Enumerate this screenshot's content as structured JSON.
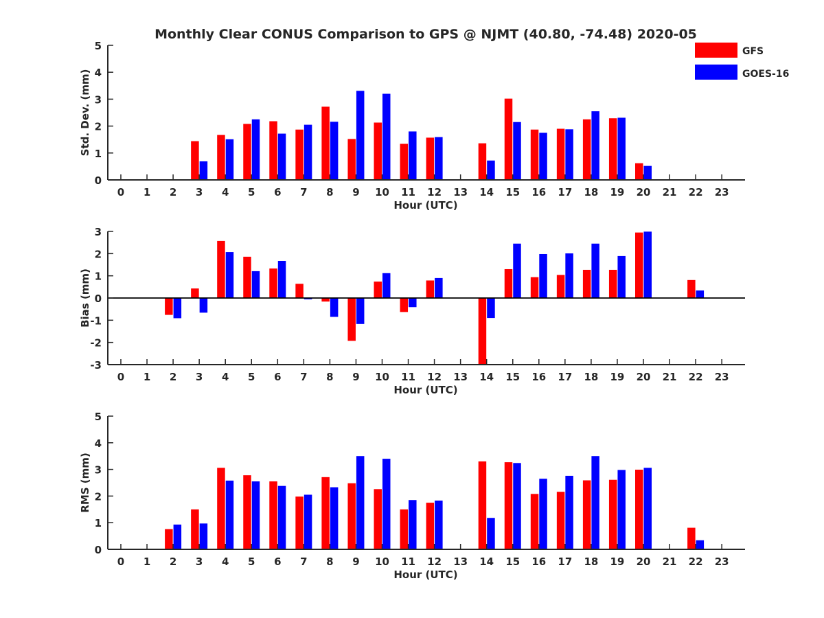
{
  "title": "Monthly Clear CONUS Comparison to GPS @ NJMT (40.80, -74.48) 2020-05",
  "legend": [
    {
      "name": "GFS",
      "color": "#ff0000"
    },
    {
      "name": "GOES-16",
      "color": "#0000ff"
    }
  ],
  "chart_data": [
    {
      "type": "bar",
      "xlabel": "Hour (UTC)",
      "ylabel": "Std. Dev. (mm)",
      "ylim": [
        0,
        5
      ],
      "yticks": [
        0,
        1,
        2,
        3,
        4,
        5
      ],
      "categories": [
        "0",
        "1",
        "2",
        "3",
        "4",
        "5",
        "6",
        "7",
        "8",
        "9",
        "10",
        "11",
        "12",
        "13",
        "14",
        "15",
        "16",
        "17",
        "18",
        "19",
        "20",
        "21",
        "22",
        "23"
      ],
      "series": [
        {
          "name": "GFS",
          "color": "#ff0000",
          "values": [
            null,
            null,
            null,
            1.44,
            1.67,
            2.08,
            2.18,
            1.87,
            2.72,
            1.52,
            2.13,
            1.34,
            1.57,
            null,
            1.36,
            3.02,
            1.87,
            1.9,
            2.25,
            2.29,
            0.62,
            null,
            null,
            null
          ]
        },
        {
          "name": "GOES-16",
          "color": "#0000ff",
          "values": [
            null,
            null,
            null,
            0.69,
            1.51,
            2.25,
            1.72,
            2.05,
            2.16,
            3.31,
            3.2,
            1.8,
            1.59,
            null,
            0.72,
            2.15,
            1.75,
            1.88,
            2.55,
            2.31,
            0.52,
            null,
            null,
            null
          ]
        }
      ]
    },
    {
      "type": "bar",
      "xlabel": "Hour (UTC)",
      "ylabel": "Bias (mm)",
      "ylim": [
        -3,
        3
      ],
      "yticks": [
        -3,
        -2,
        -1,
        0,
        1,
        2,
        3
      ],
      "categories": [
        "0",
        "1",
        "2",
        "3",
        "4",
        "5",
        "6",
        "7",
        "8",
        "9",
        "10",
        "11",
        "12",
        "13",
        "14",
        "15",
        "16",
        "17",
        "18",
        "19",
        "20",
        "21",
        "22",
        "23"
      ],
      "series": [
        {
          "name": "GFS",
          "color": "#ff0000",
          "values": [
            null,
            null,
            -0.76,
            0.43,
            2.57,
            1.86,
            1.33,
            0.64,
            -0.16,
            -1.93,
            0.74,
            -0.63,
            0.79,
            null,
            -3.0,
            1.3,
            0.94,
            1.04,
            1.27,
            1.27,
            2.95,
            null,
            0.81,
            null
          ]
        },
        {
          "name": "GOES-16",
          "color": "#0000ff",
          "values": [
            null,
            null,
            -0.91,
            -0.66,
            2.07,
            1.21,
            1.67,
            -0.06,
            -0.85,
            -1.17,
            1.12,
            -0.41,
            0.9,
            null,
            -0.9,
            2.45,
            1.98,
            2.01,
            2.45,
            1.89,
            2.99,
            null,
            0.34,
            null
          ]
        }
      ]
    },
    {
      "type": "bar",
      "xlabel": "Hour (UTC)",
      "ylabel": "RMS (mm)",
      "ylim": [
        0,
        5
      ],
      "yticks": [
        0,
        1,
        2,
        3,
        4,
        5
      ],
      "categories": [
        "0",
        "1",
        "2",
        "3",
        "4",
        "5",
        "6",
        "7",
        "8",
        "9",
        "10",
        "11",
        "12",
        "13",
        "14",
        "15",
        "16",
        "17",
        "18",
        "19",
        "20",
        "21",
        "22",
        "23"
      ],
      "series": [
        {
          "name": "GFS",
          "color": "#ff0000",
          "values": [
            null,
            null,
            0.76,
            1.5,
            3.06,
            2.78,
            2.55,
            1.98,
            2.71,
            2.48,
            2.26,
            1.5,
            1.75,
            null,
            3.3,
            3.27,
            2.08,
            2.16,
            2.59,
            2.61,
            2.99,
            null,
            0.81,
            null
          ]
        },
        {
          "name": "GOES-16",
          "color": "#0000ff",
          "values": [
            null,
            null,
            0.93,
            0.97,
            2.58,
            2.55,
            2.38,
            2.05,
            2.33,
            3.5,
            3.4,
            1.85,
            1.83,
            null,
            1.18,
            3.24,
            2.65,
            2.76,
            3.5,
            2.98,
            3.06,
            null,
            0.34,
            null
          ]
        }
      ]
    }
  ]
}
